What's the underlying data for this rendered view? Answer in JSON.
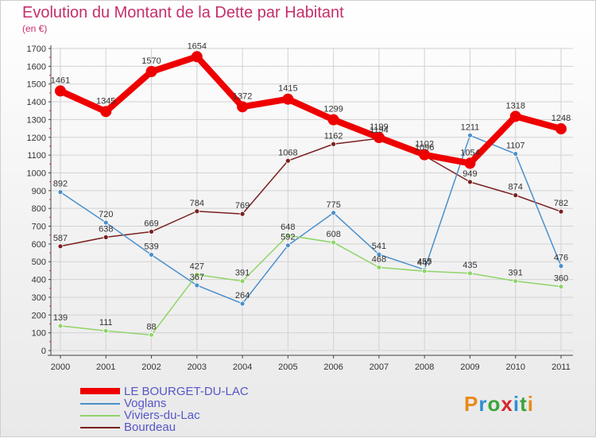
{
  "title": "Evolution du Montant de la Dette par Habitant",
  "subtitle": "(en €)",
  "logo": {
    "text": "Proxiti",
    "colors": [
      "#e8891a",
      "#2f8fd6",
      "#3aa53a",
      "#d6262d",
      "#2f8fd6",
      "#3aa53a",
      "#e8891a"
    ]
  },
  "chart_data": {
    "type": "line",
    "x": [
      "2000",
      "2001",
      "2002",
      "2003",
      "2004",
      "2005",
      "2006",
      "2007",
      "2008",
      "2009",
      "2010",
      "2011"
    ],
    "ylim": [
      0,
      1700
    ],
    "yticks": [
      0,
      100,
      200,
      300,
      400,
      500,
      600,
      700,
      800,
      900,
      1000,
      1100,
      1200,
      1300,
      1400,
      1500,
      1600,
      1700
    ],
    "grid": true,
    "legend": "bottom-left",
    "series": [
      {
        "name": "LE BOURGET-DU-LAC",
        "color": "#ee0000",
        "values": [
          1461,
          1345,
          1570,
          1654,
          1372,
          1415,
          1299,
          1199,
          1102,
          1054,
          1318,
          1248
        ]
      },
      {
        "name": "Voglans",
        "color": "#4a8fcc",
        "values": [
          892,
          720,
          539,
          367,
          264,
          592,
          775,
          541,
          455,
          1211,
          1107,
          476
        ]
      },
      {
        "name": "Viviers-du-Lac",
        "color": "#8ed468",
        "values": [
          139,
          111,
          88,
          427,
          391,
          648,
          608,
          468,
          447,
          435,
          391,
          360
        ]
      },
      {
        "name": "Bourdeau",
        "color": "#7a2020",
        "values": [
          587,
          638,
          669,
          784,
          769,
          1068,
          1162,
          1194,
          1096,
          949,
          874,
          782
        ]
      }
    ]
  }
}
